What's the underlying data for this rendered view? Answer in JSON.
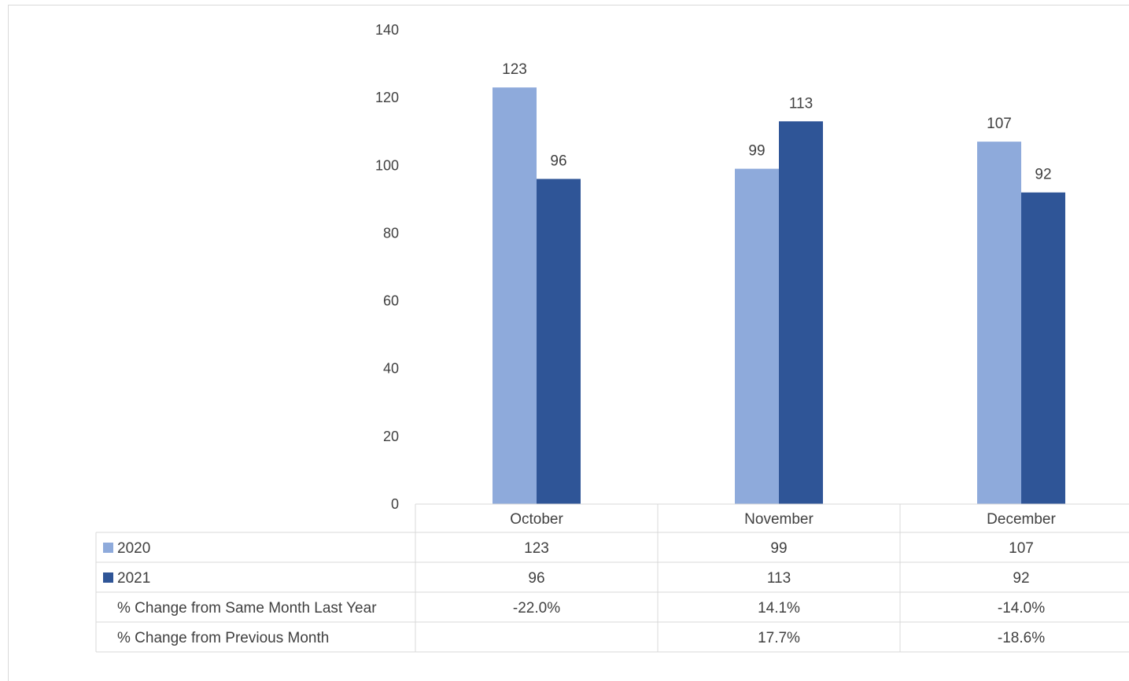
{
  "chart_data": {
    "type": "bar",
    "categories": [
      "October",
      "November",
      "December"
    ],
    "series": [
      {
        "name": "2020",
        "values": [
          123,
          99,
          107
        ],
        "color": "#8eaadb"
      },
      {
        "name": "2021",
        "values": [
          96,
          113,
          92
        ],
        "color": "#2f5597"
      }
    ],
    "ylim": [
      0,
      140
    ],
    "yticks": [
      0,
      20,
      40,
      60,
      80,
      100,
      120,
      140
    ],
    "grid": false,
    "legend": "data-table",
    "data_table": {
      "rows": [
        {
          "label": "2020",
          "legend_color": "#8eaadb",
          "cells": [
            "123",
            "99",
            "107"
          ]
        },
        {
          "label": "2021",
          "legend_color": "#2f5597",
          "cells": [
            "96",
            "113",
            "92"
          ]
        },
        {
          "label": "% Change from Same Month Last Year",
          "cells": [
            "-22.0%",
            "14.1%",
            "-14.0%"
          ]
        },
        {
          "label": "% Change from Previous Month",
          "cells": [
            "",
            "17.7%",
            "-18.6%"
          ]
        }
      ]
    }
  }
}
